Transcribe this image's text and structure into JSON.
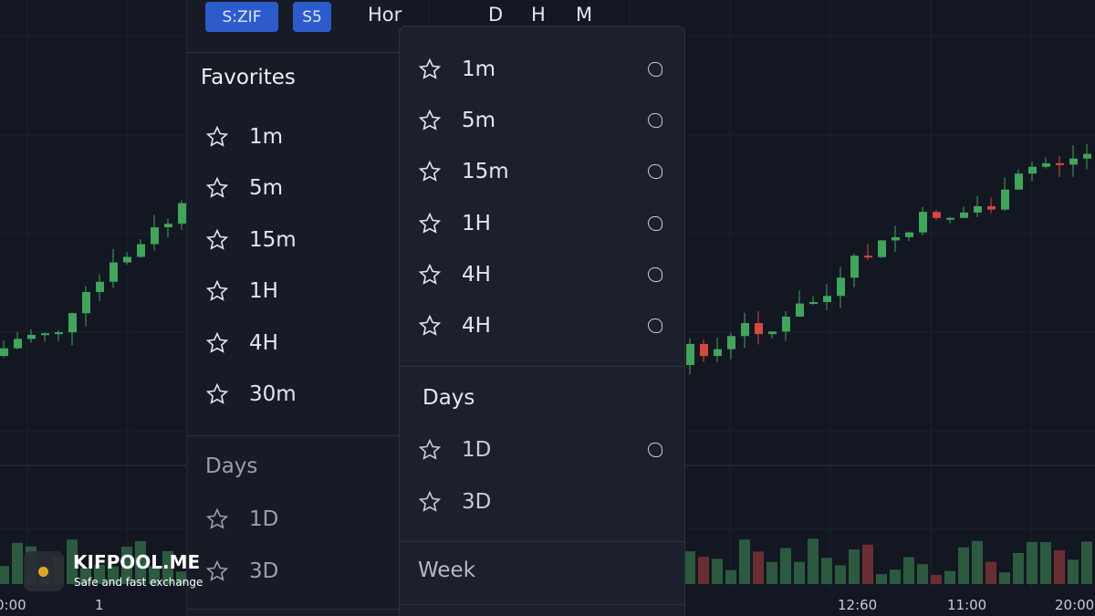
{
  "toolbar": {
    "buttons": [
      "S:ZIF",
      "S5"
    ],
    "items": [
      "Hor",
      "D",
      "H",
      "M"
    ]
  },
  "favorites_panel": {
    "title": "Favorites",
    "items": [
      "1m",
      "5m",
      "15m",
      "1H",
      "4H",
      "30m"
    ],
    "days_title": "Days",
    "days_items": [
      "1D",
      "3D"
    ]
  },
  "dropdown": {
    "items": [
      "1m",
      "5m",
      "15m",
      "1H",
      "4H",
      "4H"
    ],
    "days_title": "Days",
    "days_items": [
      "1D",
      "3D"
    ],
    "week_title": "Week"
  },
  "time_axis": [
    "0:00",
    "1",
    "12:60",
    "11:00",
    "20:00"
  ],
  "watermark": {
    "name": "KIFPOOL.ME",
    "tagline": "Safe and fast exchange"
  }
}
